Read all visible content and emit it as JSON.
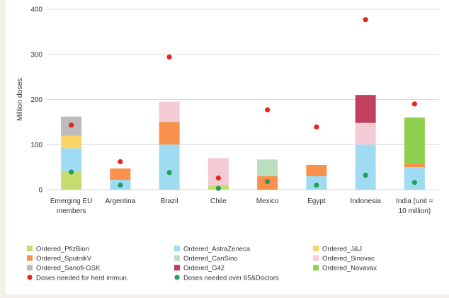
{
  "chart_data": {
    "type": "bar",
    "stacked": true,
    "ylabel": "Million doses",
    "ylim": [
      0,
      400
    ],
    "yticks": [
      0,
      100,
      200,
      300,
      400
    ],
    "grid": true,
    "legend_position": "bottom",
    "categories": [
      [
        "Emerging EU",
        "members"
      ],
      [
        "Argentina"
      ],
      [
        "Brazil"
      ],
      [
        "Chile"
      ],
      [
        "Mexico"
      ],
      [
        "Egypt"
      ],
      [
        "Indonesia"
      ],
      [
        "India     (unit =",
        "10 million)"
      ]
    ],
    "series": [
      {
        "name": "Ordered_PfizBion",
        "color": "#c5dc6e",
        "values": [
          40,
          0,
          0,
          10,
          0,
          0,
          0,
          0
        ]
      },
      {
        "name": "Ordered_AstraZeneca",
        "color": "#9fdcf2",
        "values": [
          52,
          22,
          100,
          0,
          0,
          30,
          100,
          50
        ]
      },
      {
        "name": "Ordered_J&J",
        "color": "#f9d567",
        "values": [
          28,
          0,
          0,
          0,
          0,
          0,
          0,
          0
        ]
      },
      {
        "name": "Ordered_SputnikV",
        "color": "#f9914c",
        "values": [
          0,
          25,
          50,
          0,
          30,
          25,
          0,
          8
        ]
      },
      {
        "name": "Ordered_CanSino",
        "color": "#b9dfbf",
        "values": [
          0,
          0,
          0,
          0,
          37,
          0,
          0,
          0
        ]
      },
      {
        "name": "Ordered_Sinovac",
        "color": "#f4cad5",
        "values": [
          0,
          0,
          45,
          60,
          0,
          0,
          48,
          0
        ]
      },
      {
        "name": "Ordered_Sanofi-GSK",
        "color": "#bcbcbc",
        "values": [
          42,
          0,
          0,
          0,
          0,
          0,
          0,
          0
        ]
      },
      {
        "name": "Ordered_G42",
        "color": "#c2405d",
        "values": [
          0,
          0,
          0,
          0,
          0,
          0,
          62,
          0
        ]
      },
      {
        "name": "Ordered_Novavax",
        "color": "#8fd14f",
        "values": [
          0,
          0,
          0,
          0,
          0,
          0,
          0,
          102
        ]
      }
    ],
    "points": [
      {
        "name": "Doses needed for herd immun.",
        "color": "#e8251d",
        "values": [
          143,
          62,
          294,
          26,
          177,
          139,
          377,
          190
        ]
      },
      {
        "name": "Doses needed over 65&Doctors",
        "color": "#20a05c",
        "values": [
          39,
          10,
          38,
          3,
          18,
          10,
          32,
          16
        ]
      }
    ]
  }
}
